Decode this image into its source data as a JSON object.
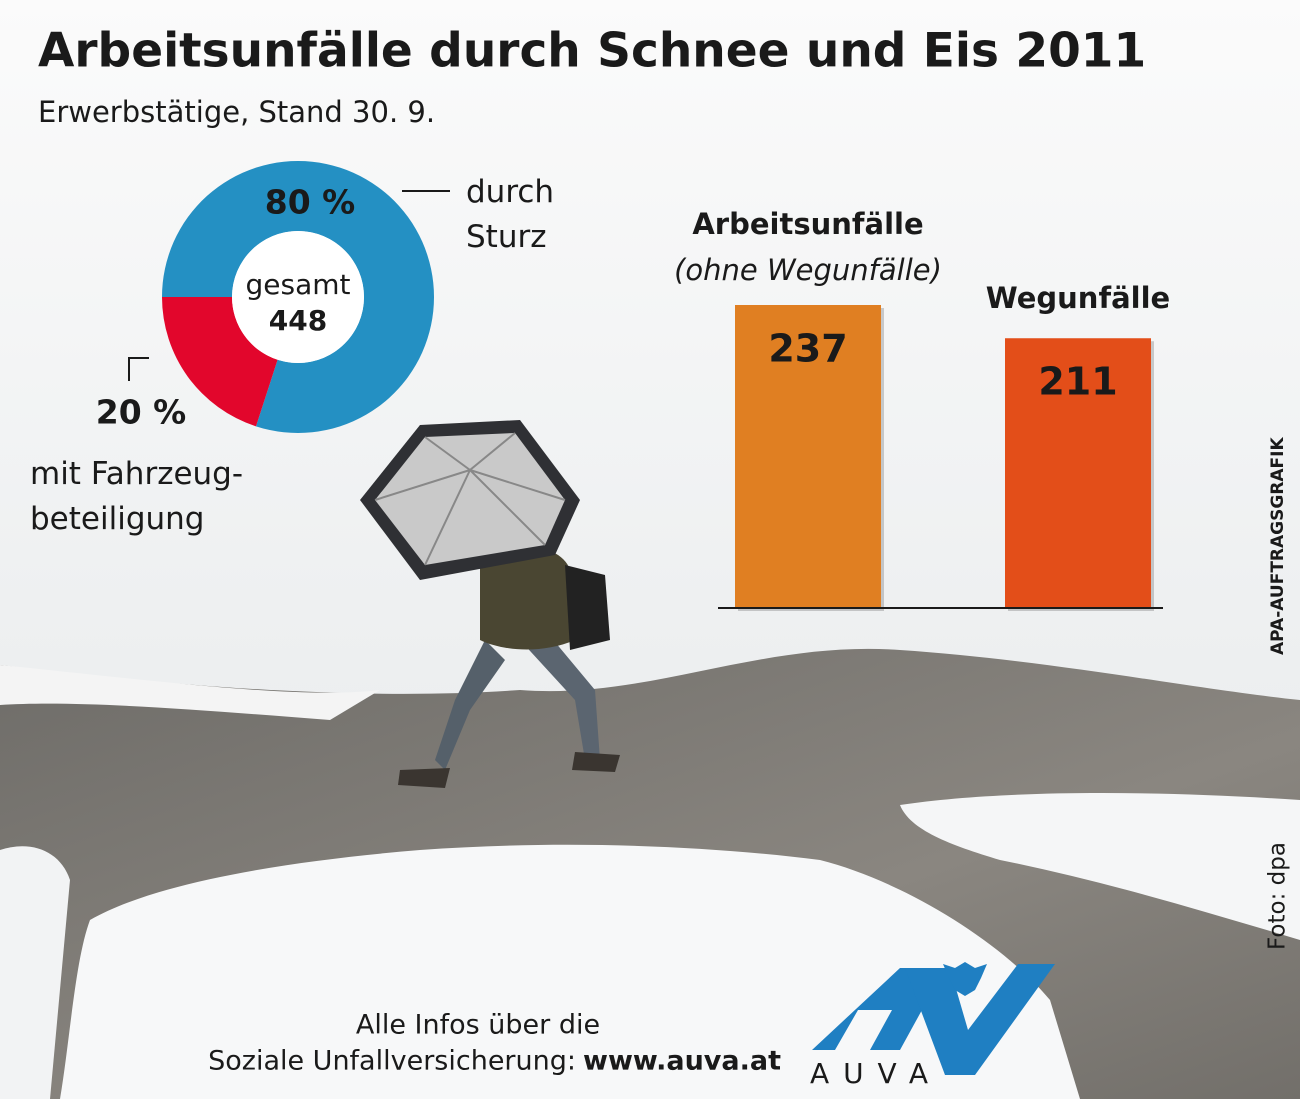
{
  "title": "Arbeitsunfälle durch Schnee und Eis 2011",
  "subtitle": "Erwerbstätige, Stand 30. 9.",
  "chart_data": [
    {
      "type": "donut",
      "categories": [
        "durch Sturz",
        "mit Fahrzeug-beteiligung"
      ],
      "values": [
        80,
        20
      ],
      "value_labels": [
        "80 %",
        "20 %"
      ],
      "colors": [
        "#2490c3",
        "#e2062c"
      ],
      "total_label": "gesamt",
      "total": 448
    },
    {
      "type": "bar",
      "categories": [
        "Arbeitsunfälle",
        "Wegunfälle"
      ],
      "category_note": "(ohne Wegunfälle)",
      "values": [
        237,
        211
      ],
      "colors": [
        "#e07f22",
        "#e34e19"
      ]
    }
  ],
  "credits": {
    "graphic": "APA-AUFTRAGSGRAFIK",
    "photo": "Foto: dpa"
  },
  "footer": {
    "line1": "Alle Infos über die",
    "line2": "Soziale Unfallversicherung:",
    "url": "www.auva.at"
  },
  "logo": "AUVA"
}
